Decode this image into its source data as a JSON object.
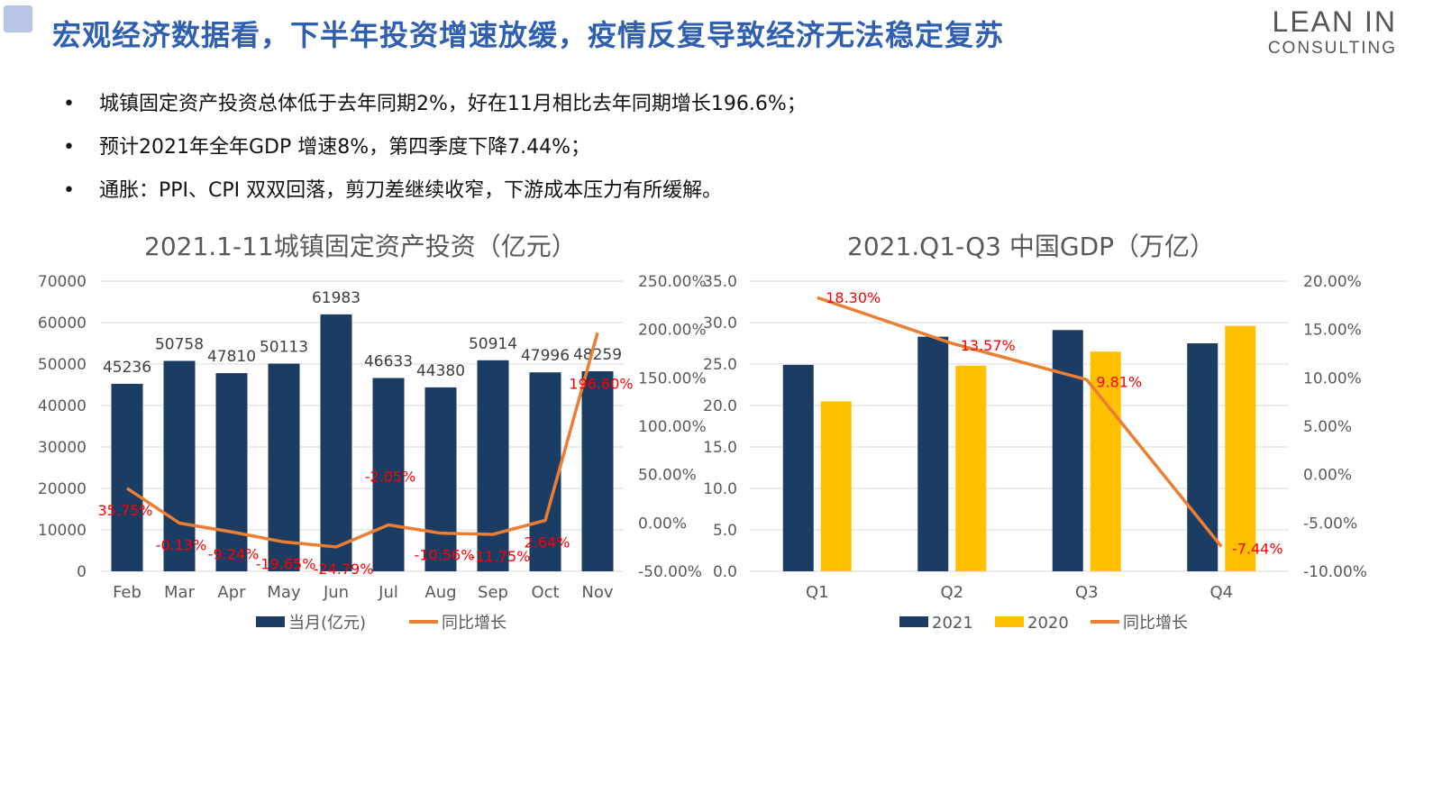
{
  "header": {
    "title": "宏观经济数据看，下半年投资增速放缓，疫情反复导致经济无法稳定复苏",
    "logo_line1": "LEAN IN",
    "logo_line2": "CONSULTING"
  },
  "bullets": [
    "城镇固定资产投资总体低于去年同期2%，好在11月相比去年同期增长196.6%；",
    "预计2021年全年GDP 增速8%，第四季度下降7.44%；",
    "通胀：PPI、CPI 双双回落，剪刀差继续收窄，下游成本压力有所缓解。"
  ],
  "colors": {
    "navy": "#1b3d63",
    "gold": "#ffc000",
    "orange": "#ed7d31",
    "label_red": "#ff0000"
  },
  "chart_data": [
    {
      "type": "bar",
      "title": "2021.1-11城镇固定资产投资（亿元）",
      "categories": [
        "Feb",
        "Mar",
        "Apr",
        "May",
        "Jun",
        "Jul",
        "Aug",
        "Sep",
        "Oct",
        "Nov"
      ],
      "series": [
        {
          "name": "当月(亿元)",
          "axis": "left",
          "kind": "bar",
          "values": [
            45236,
            50758,
            47810,
            50113,
            61983,
            46633,
            44380,
            50914,
            47996,
            48259
          ],
          "labels": [
            "45236",
            "50758",
            "47810",
            "50113",
            "61983",
            "46633",
            "44380",
            "50914",
            "47996",
            "48259"
          ]
        },
        {
          "name": "同比增长",
          "axis": "right",
          "kind": "line",
          "values": [
            35.75,
            -0.13,
            -9.24,
            -19.65,
            -24.79,
            -2.05,
            -10.56,
            -11.75,
            2.64,
            196.6
          ],
          "labels": [
            "35.75%",
            "-0.13%",
            "-9.24%",
            "-19.65%",
            "-24.79%",
            "-2.05%",
            "-10.56%",
            "-11.75%",
            "2.64%",
            "196.60%"
          ]
        }
      ],
      "y_left": {
        "min": 0,
        "max": 70000,
        "ticks": [
          "0",
          "10000",
          "20000",
          "30000",
          "40000",
          "50000",
          "60000",
          "70000"
        ]
      },
      "y_right": {
        "min": -50,
        "max": 250,
        "ticks": [
          "-50.00%",
          "0.00%",
          "50.00%",
          "100.00%",
          "150.00%",
          "200.00%",
          "250.00%"
        ]
      },
      "legend": "bottom",
      "grid": true
    },
    {
      "type": "bar",
      "title": "2021.Q1-Q3 中国GDP（万亿）",
      "categories": [
        "Q1",
        "Q2",
        "Q3",
        "Q4"
      ],
      "series": [
        {
          "name": "2021",
          "axis": "left",
          "kind": "bar",
          "values": [
            24.9,
            28.3,
            29.1,
            27.5
          ]
        },
        {
          "name": "2020",
          "axis": "left",
          "kind": "bar",
          "values": [
            20.5,
            24.8,
            26.5,
            29.6
          ]
        },
        {
          "name": "同比增长",
          "axis": "right",
          "kind": "line",
          "values": [
            18.3,
            13.57,
            9.81,
            -7.44
          ],
          "labels": [
            "18.30%",
            "13.57%",
            "9.81%",
            "-7.44%"
          ]
        }
      ],
      "y_left": {
        "min": 0,
        "max": 35,
        "ticks": [
          "0.0",
          "5.0",
          "10.0",
          "15.0",
          "20.0",
          "25.0",
          "30.0",
          "35.0"
        ]
      },
      "y_right": {
        "min": -10,
        "max": 20,
        "ticks": [
          "-10.00%",
          "-5.00%",
          "0.00%",
          "5.00%",
          "10.00%",
          "15.00%",
          "20.00%"
        ]
      },
      "legend": "bottom",
      "grid": true
    }
  ]
}
